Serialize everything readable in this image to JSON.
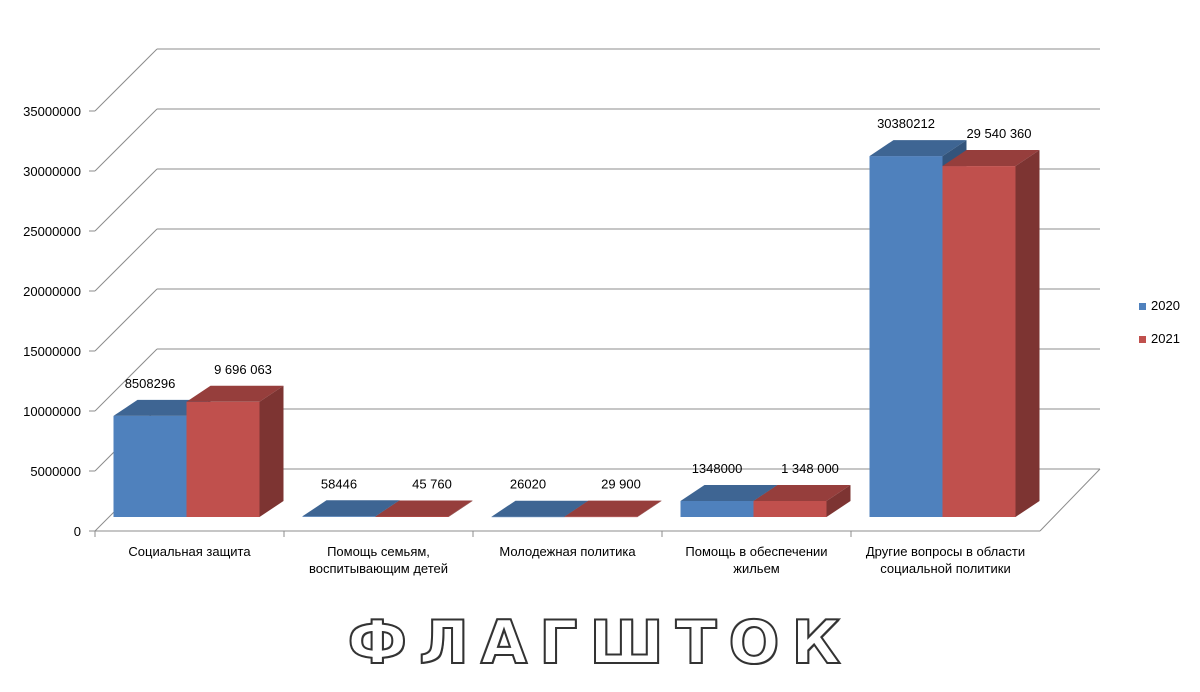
{
  "chart_data": {
    "type": "bar",
    "categories": [
      [
        "Социальная защита"
      ],
      [
        "Помощь семьям,",
        "воспитывающим детей"
      ],
      [
        "Молодежная политика"
      ],
      [
        "Помощь в обеспечении",
        "жильем"
      ],
      [
        "Другие вопросы в области",
        "социальной политики"
      ]
    ],
    "series": [
      {
        "name": "2020",
        "color": "#4F81BD",
        "values": [
          8508296,
          58446,
          26020,
          1348000,
          30380212
        ],
        "labels": [
          "8508296",
          "58446",
          "26020",
          "1348000",
          "30380212"
        ]
      },
      {
        "name": "2021",
        "color": "#C0504D",
        "values": [
          9696063,
          45760,
          29900,
          1348000,
          29540360
        ],
        "labels": [
          "9 696 063",
          "45 760",
          "29 900",
          "1 348 000",
          "29 540 360"
        ]
      }
    ],
    "ylim": [
      0,
      35000000
    ],
    "yticks": [
      "0",
      "5000000",
      "10000000",
      "15000000",
      "20000000",
      "25000000",
      "30000000",
      "35000000"
    ],
    "grid": true,
    "legend": "right",
    "style": "3d-clustered"
  },
  "watermark": {
    "text": "ФЛАГШТОК"
  }
}
